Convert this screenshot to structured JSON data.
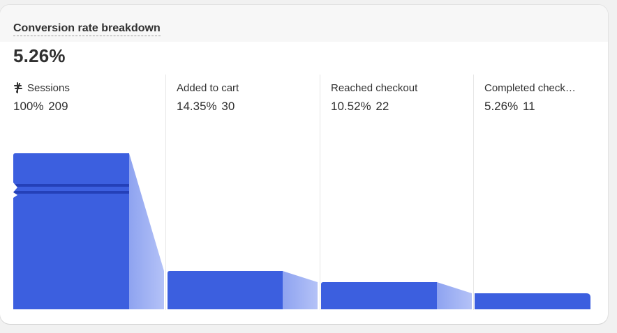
{
  "card": {
    "title": "Conversion rate breakdown",
    "value": "5.26%"
  },
  "icons": {
    "sessions": "sessions-split-icon"
  },
  "colors": {
    "bar": "#3c5fdf",
    "connector_start": "#8ea3f0",
    "connector_end": "#b4c2f7"
  },
  "chart_data": {
    "type": "bar",
    "title": "Conversion rate breakdown",
    "categories": [
      "Sessions",
      "Added to cart",
      "Reached checkout",
      "Completed checkout"
    ],
    "values": [
      209,
      30,
      22,
      11
    ],
    "percentages": [
      100,
      14.35,
      10.52,
      5.26
    ],
    "ylim": [
      0,
      209
    ],
    "stages": [
      {
        "label": "Sessions",
        "percent": "100%",
        "count": "209"
      },
      {
        "label": "Added to cart",
        "percent": "14.35%",
        "count": "30"
      },
      {
        "label": "Reached checkout",
        "percent": "10.52%",
        "count": "22"
      },
      {
        "label": "Completed check…",
        "percent": "5.26%",
        "count": "11"
      }
    ]
  }
}
